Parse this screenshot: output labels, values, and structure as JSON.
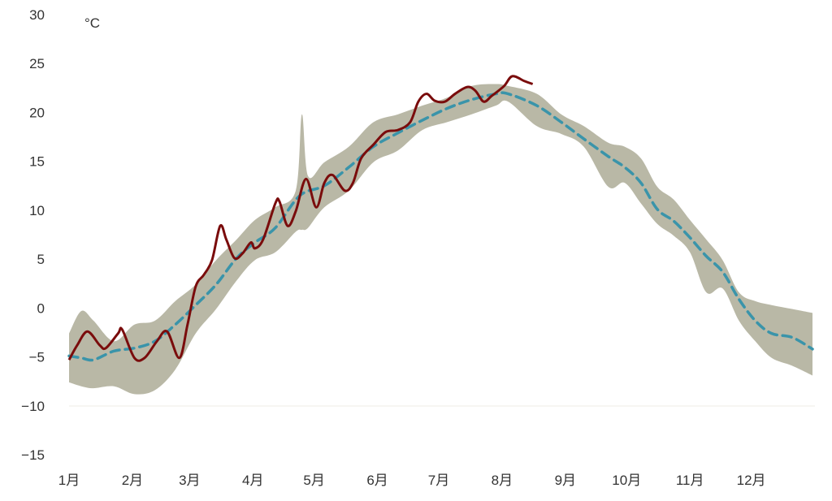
{
  "chart_data": {
    "type": "line",
    "unit_label": "°C",
    "ylim": [
      -15,
      30
    ],
    "yticks": [
      30,
      25,
      20,
      15,
      10,
      5,
      0,
      -5,
      -10,
      -15
    ],
    "xtick_labels": [
      "1月",
      "2月",
      "3月",
      "4月",
      "5月",
      "6月",
      "7月",
      "8月",
      "9月",
      "10月",
      "11月",
      "12月"
    ],
    "grid": false,
    "colors": {
      "band": "#b9b8a6",
      "mean": "#3a94aa",
      "actual": "#7a0c0c"
    },
    "band": {
      "x": [
        "01-01",
        "01-07",
        "01-13",
        "01-23",
        "02-02",
        "02-12",
        "02-22",
        "03-04",
        "03-14",
        "03-24",
        "04-02",
        "04-12",
        "04-22",
        "04-25",
        "04-28",
        "05-06",
        "05-18",
        "05-30",
        "06-11",
        "06-23",
        "07-05",
        "07-17",
        "07-29",
        "08-04",
        "08-18",
        "08-30",
        "09-10",
        "09-22",
        "09-30",
        "10-08",
        "10-16",
        "10-24",
        "11-01",
        "11-09",
        "11-17",
        "11-25",
        "12-03",
        "12-11",
        "12-21",
        "12-31"
      ],
      "upper": [
        -2.6,
        -0.3,
        -1.3,
        -3.4,
        -1.7,
        -1.3,
        0.7,
        2.4,
        4.9,
        7.0,
        9.0,
        10.3,
        12.0,
        19.8,
        13.5,
        14.9,
        16.5,
        19.0,
        19.8,
        20.7,
        21.5,
        22.7,
        22.9,
        22.7,
        21.9,
        19.8,
        18.6,
        16.9,
        16.5,
        15.3,
        12.4,
        11.1,
        9.0,
        7.0,
        4.9,
        1.6,
        0.7,
        0.3,
        -0.1,
        -0.5
      ],
      "lower": [
        -7.6,
        -8.0,
        -8.2,
        -8.0,
        -8.8,
        -8.4,
        -6.3,
        -2.6,
        -0.1,
        2.8,
        4.9,
        5.7,
        7.8,
        8.0,
        8.2,
        10.3,
        12.0,
        14.9,
        16.1,
        18.2,
        19.0,
        19.8,
        20.7,
        21.1,
        18.6,
        17.8,
        16.5,
        12.4,
        12.8,
        10.7,
        8.6,
        7.4,
        5.7,
        1.6,
        2.0,
        -1.3,
        -3.4,
        -5.1,
        -5.9,
        -6.9
      ]
    },
    "mean": {
      "x": [
        "01-01",
        "01-07",
        "01-13",
        "01-23",
        "02-02",
        "02-12",
        "02-22",
        "03-04",
        "03-14",
        "03-24",
        "04-02",
        "04-12",
        "04-24",
        "05-06",
        "05-18",
        "05-30",
        "06-11",
        "06-23",
        "07-05",
        "07-17",
        "07-29",
        "08-04",
        "08-18",
        "08-30",
        "09-10",
        "09-22",
        "09-30",
        "10-08",
        "10-16",
        "10-24",
        "11-01",
        "11-09",
        "11-17",
        "11-25",
        "12-03",
        "12-11",
        "12-21",
        "12-31"
      ],
      "values": [
        -4.9,
        -5.1,
        -5.3,
        -4.4,
        -4.1,
        -3.4,
        -1.7,
        0.3,
        2.4,
        5.1,
        6.7,
        8.2,
        11.5,
        12.5,
        14.4,
        16.5,
        17.9,
        19.2,
        20.4,
        21.3,
        21.9,
        21.9,
        20.7,
        19.0,
        17.3,
        15.5,
        14.4,
        12.8,
        10.1,
        8.9,
        7.2,
        5.3,
        3.7,
        0.9,
        -1.3,
        -2.6,
        -3.0,
        -4.2
      ]
    },
    "actual": {
      "x": [
        "01-01",
        "01-05",
        "01-10",
        "01-16",
        "01-19",
        "01-25",
        "01-27",
        "02-02",
        "02-07",
        "02-13",
        "02-18",
        "02-24",
        "02-28",
        "03-04",
        "03-08",
        "03-12",
        "03-16",
        "03-19",
        "03-23",
        "03-27",
        "03-31",
        "04-02",
        "04-06",
        "04-12",
        "04-14",
        "04-18",
        "04-22",
        "04-27",
        "05-02",
        "05-06",
        "05-10",
        "05-16",
        "05-20",
        "05-24",
        "05-30",
        "06-05",
        "06-11",
        "06-17",
        "06-21",
        "06-25",
        "06-29",
        "07-04",
        "07-09",
        "07-15",
        "07-19",
        "07-23",
        "07-27",
        "08-02",
        "08-06",
        "08-12",
        "08-16"
      ],
      "values": [
        -5.3,
        -3.8,
        -2.4,
        -3.8,
        -4.1,
        -2.6,
        -2.2,
        -5.1,
        -5.1,
        -3.4,
        -2.4,
        -5.1,
        -1.7,
        2.2,
        3.4,
        4.9,
        8.4,
        7.0,
        5.1,
        5.6,
        6.7,
        6.1,
        7.0,
        10.7,
        10.9,
        8.4,
        9.9,
        13.2,
        10.3,
        12.8,
        13.6,
        12.0,
        12.8,
        15.3,
        16.7,
        18.0,
        18.2,
        19.0,
        21.1,
        21.9,
        21.2,
        21.1,
        21.9,
        22.6,
        22.2,
        21.1,
        21.7,
        22.7,
        23.7,
        23.2,
        22.9
      ]
    }
  }
}
